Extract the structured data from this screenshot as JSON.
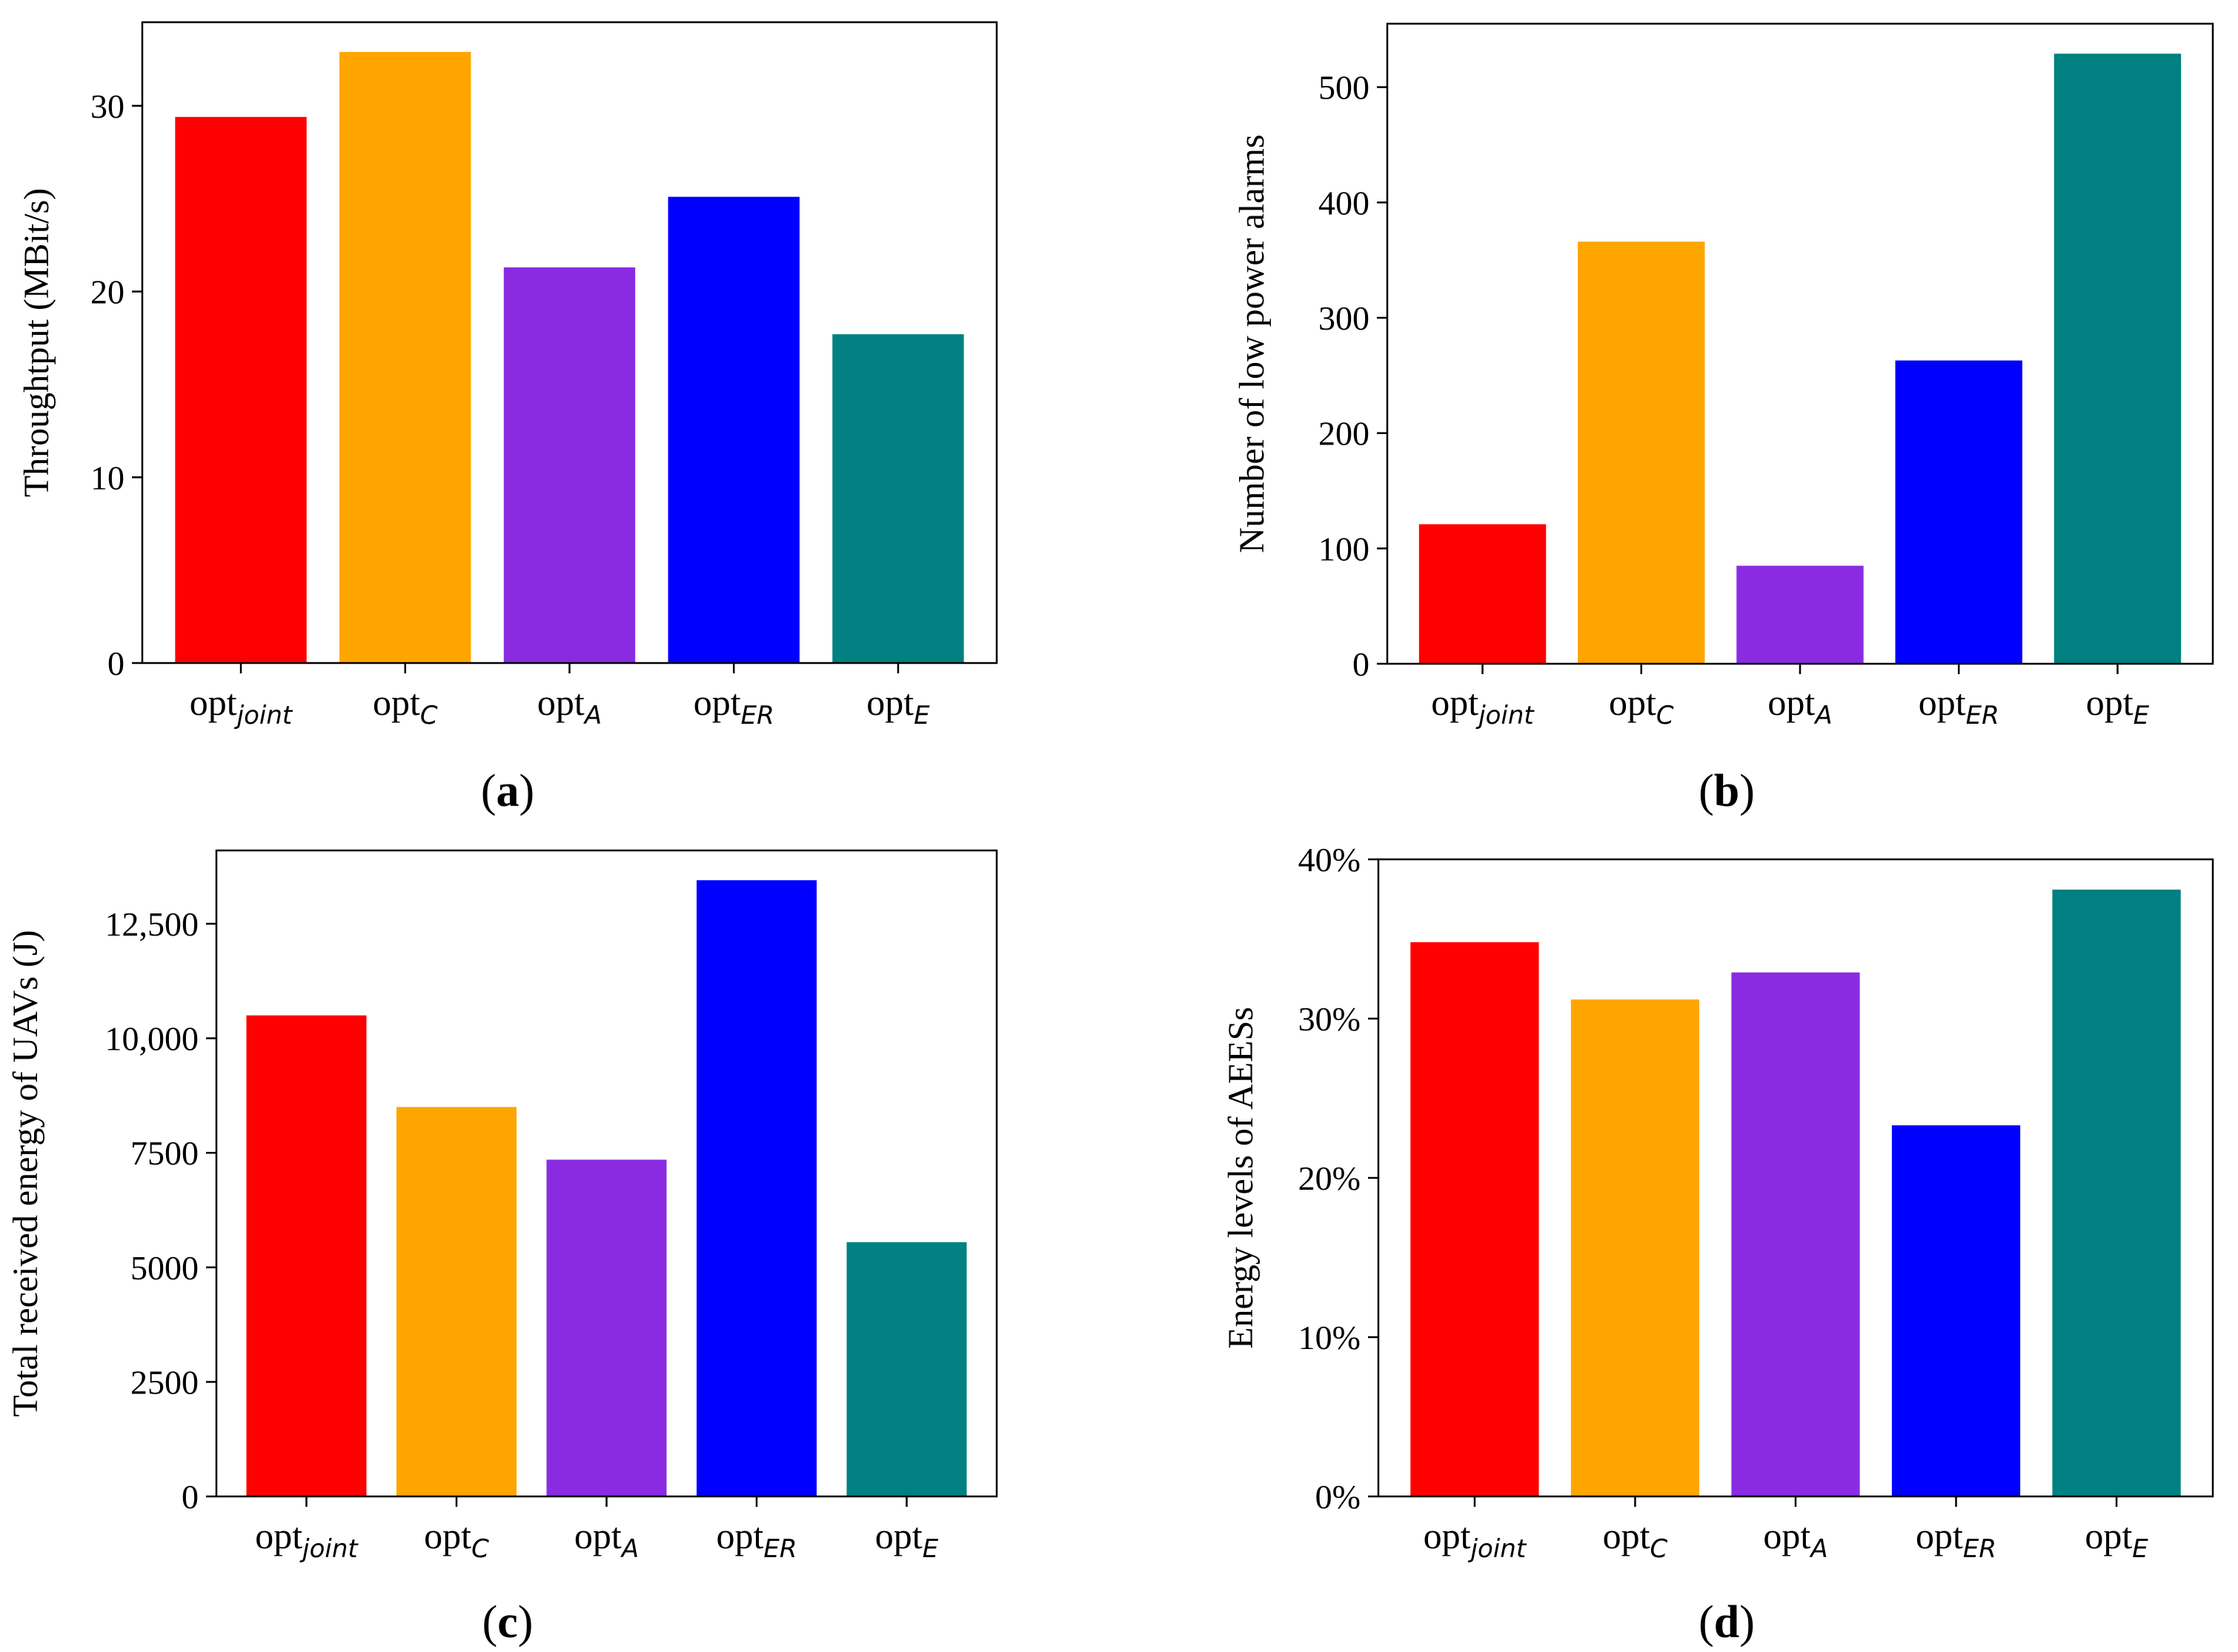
{
  "figure": {
    "panel_labels": [
      {
        "open": "(",
        "letter": "a",
        "close": ")"
      },
      {
        "open": "(",
        "letter": "b",
        "close": ")"
      },
      {
        "open": "(",
        "letter": "c",
        "close": ")"
      },
      {
        "open": "(",
        "letter": "d",
        "close": ")"
      }
    ]
  },
  "colors": {
    "joint": "#ff0000",
    "C": "#ffa500",
    "A": "#8a2be2",
    "ER": "#0000ff",
    "E": "#008080",
    "axis": "#000000"
  },
  "chart_data": [
    {
      "id": "a",
      "type": "bar",
      "title": "",
      "xlabel": "",
      "ylabel": "Throughtput (MBit/s)",
      "categories": [
        {
          "base": "opt",
          "sub": "joint"
        },
        {
          "base": "opt",
          "sub": "C"
        },
        {
          "base": "opt",
          "sub": "A"
        },
        {
          "base": "opt",
          "sub": "ER"
        },
        {
          "base": "opt",
          "sub": "E"
        }
      ],
      "values": [
        29.4,
        32.9,
        21.3,
        25.1,
        17.7
      ],
      "bar_colors": [
        "#ff0000",
        "#ffa500",
        "#8a2be2",
        "#0000ff",
        "#008080"
      ],
      "ylim": [
        0,
        34.5
      ],
      "yticks": [
        0,
        10,
        20,
        30
      ],
      "ytick_labels": [
        "0",
        "10",
        "20",
        "30"
      ],
      "grid": false
    },
    {
      "id": "b",
      "type": "bar",
      "title": "",
      "xlabel": "",
      "ylabel": "Number of low power alarms",
      "categories": [
        {
          "base": "opt",
          "sub": "joint"
        },
        {
          "base": "opt",
          "sub": "C"
        },
        {
          "base": "opt",
          "sub": "A"
        },
        {
          "base": "opt",
          "sub": "ER"
        },
        {
          "base": "opt",
          "sub": "E"
        }
      ],
      "values": [
        121,
        366,
        85,
        263,
        529
      ],
      "bar_colors": [
        "#ff0000",
        "#ffa500",
        "#8a2be2",
        "#0000ff",
        "#008080"
      ],
      "ylim": [
        0,
        555
      ],
      "yticks": [
        0,
        100,
        200,
        300,
        400,
        500
      ],
      "ytick_labels": [
        "0",
        "100",
        "200",
        "300",
        "400",
        "500"
      ],
      "grid": false
    },
    {
      "id": "c",
      "type": "bar",
      "title": "",
      "xlabel": "",
      "ylabel": "Total received energy of UAVs (J)",
      "categories": [
        {
          "base": "opt",
          "sub": "joint"
        },
        {
          "base": "opt",
          "sub": "C"
        },
        {
          "base": "opt",
          "sub": "A"
        },
        {
          "base": "opt",
          "sub": "ER"
        },
        {
          "base": "opt",
          "sub": "E"
        }
      ],
      "values": [
        10500,
        8500,
        7350,
        13450,
        5550
      ],
      "bar_colors": [
        "#ff0000",
        "#ffa500",
        "#8a2be2",
        "#0000ff",
        "#008080"
      ],
      "ylim": [
        0,
        14100
      ],
      "yticks": [
        0,
        2500,
        5000,
        7500,
        10000,
        12500
      ],
      "ytick_labels": [
        "0",
        "2500",
        "5000",
        "7500",
        "10,000",
        "12,500"
      ],
      "grid": false
    },
    {
      "id": "d",
      "type": "bar",
      "title": "",
      "xlabel": "",
      "ylabel": "Energy levels of AEESs",
      "categories": [
        {
          "base": "opt",
          "sub": "joint"
        },
        {
          "base": "opt",
          "sub": "C"
        },
        {
          "base": "opt",
          "sub": "A"
        },
        {
          "base": "opt",
          "sub": "ER"
        },
        {
          "base": "opt",
          "sub": "E"
        }
      ],
      "values": [
        34.8,
        31.2,
        32.9,
        23.3,
        38.1
      ],
      "bar_colors": [
        "#ff0000",
        "#ffa500",
        "#8a2be2",
        "#0000ff",
        "#008080"
      ],
      "ylim": [
        0,
        40
      ],
      "yticks": [
        0,
        10,
        20,
        30,
        40
      ],
      "ytick_labels": [
        "0%",
        "10%",
        "20%",
        "30%",
        "40%"
      ],
      "grid": false
    }
  ]
}
